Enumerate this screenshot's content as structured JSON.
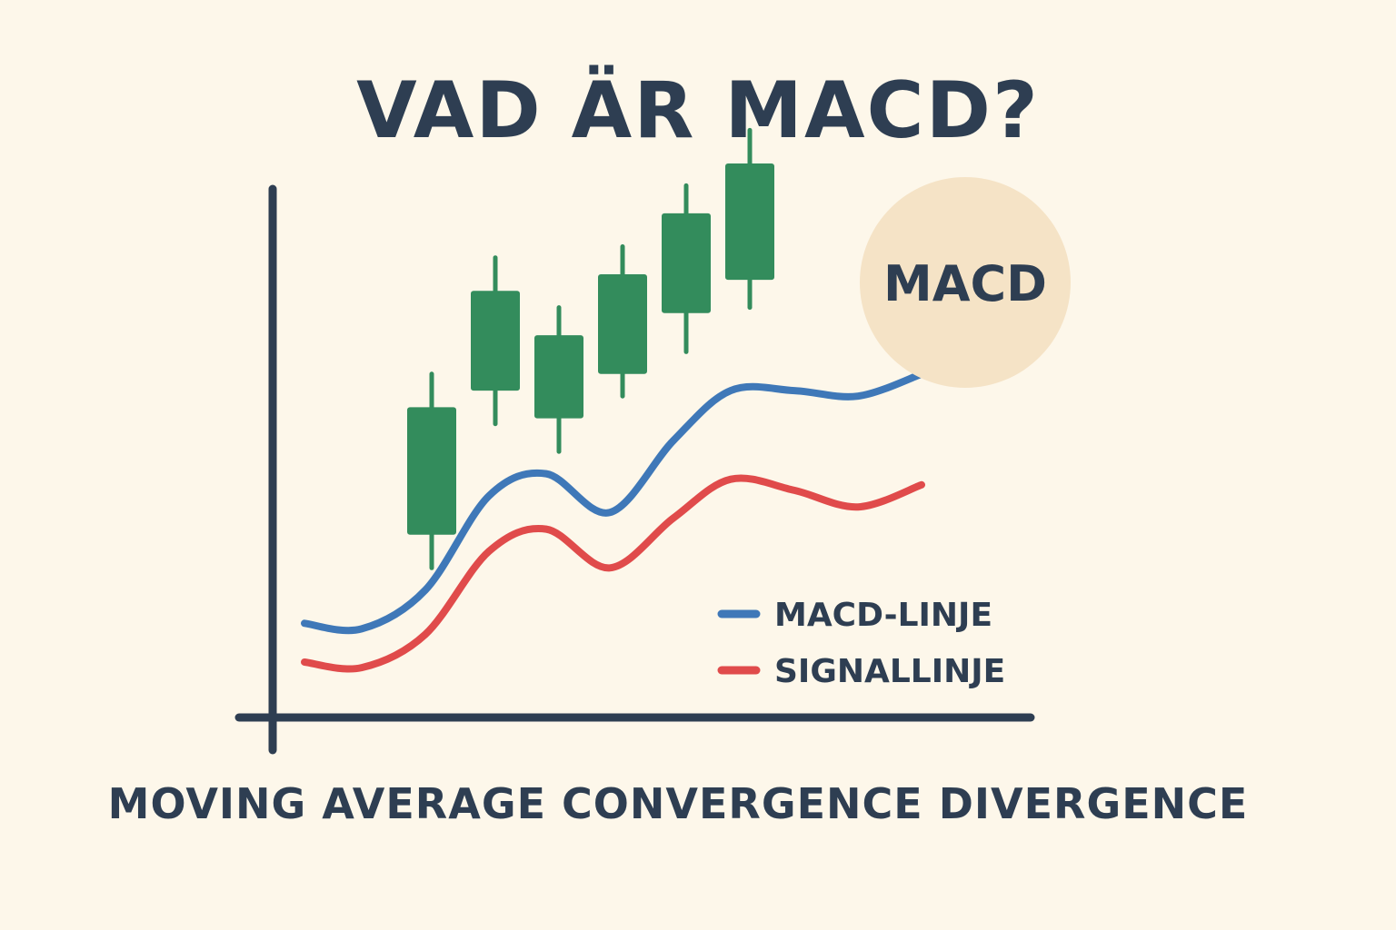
{
  "title": "VAD ÄR MACD?",
  "subtitle": "MOVING AVERAGE CONVERGENCE DIVERGENCE",
  "colors": {
    "background": "#fdf7ea",
    "text": "#2e3e52",
    "candle": "#338c5c",
    "macd_line": "#3f78b8",
    "signal_line": "#e04b4b",
    "badge": "#f5e3c6"
  },
  "chart_data": {
    "type": "line",
    "title": "",
    "xlabel": "",
    "ylabel": "",
    "xlim": [
      0,
      12
    ],
    "ylim": [
      0,
      10
    ],
    "grid": false,
    "legend_position": "bottom-right",
    "badge": "MACD",
    "candles": [
      {
        "x": 2.5,
        "open": 3.3,
        "close": 5.6,
        "low": 2.7,
        "high": 6.2
      },
      {
        "x": 3.5,
        "open": 5.9,
        "close": 7.7,
        "low": 5.3,
        "high": 8.3
      },
      {
        "x": 4.5,
        "open": 5.4,
        "close": 6.9,
        "low": 4.8,
        "high": 7.4
      },
      {
        "x": 5.5,
        "open": 6.2,
        "close": 8.0,
        "low": 5.8,
        "high": 8.5
      },
      {
        "x": 6.5,
        "open": 7.3,
        "close": 9.1,
        "low": 6.6,
        "high": 9.6
      },
      {
        "x": 7.5,
        "open": 7.9,
        "close": 10.0,
        "low": 7.4,
        "high": 10.6
      }
    ],
    "series": [
      {
        "name": "MACD-LINJE",
        "color": "#3f78b8",
        "x": [
          0.5,
          1.4,
          2.4,
          3.4,
          4.3,
          5.3,
          6.3,
          7.2,
          8.2,
          9.2,
          10.2
        ],
        "values": [
          1.7,
          1.6,
          2.3,
          4.0,
          4.4,
          3.7,
          5.0,
          5.9,
          5.9,
          5.8,
          6.2
        ]
      },
      {
        "name": "SIGNALLINJE",
        "color": "#e04b4b",
        "x": [
          0.5,
          1.4,
          2.4,
          3.4,
          4.3,
          5.3,
          6.3,
          7.2,
          8.2,
          9.2,
          10.2
        ],
        "values": [
          1.0,
          0.9,
          1.5,
          3.0,
          3.4,
          2.7,
          3.6,
          4.3,
          4.1,
          3.8,
          4.2
        ]
      }
    ]
  }
}
